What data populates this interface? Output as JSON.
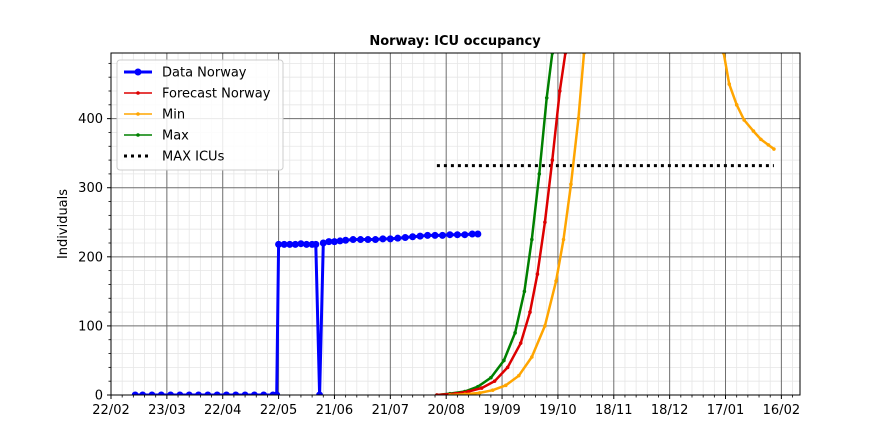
{
  "chart_data": {
    "type": "line",
    "title": "Norway: ICU occupancy",
    "xlabel": "",
    "ylabel": "Individuals",
    "x_axis": {
      "type": "date",
      "range": [
        "2020-02-22",
        "2021-02-26"
      ],
      "ticks": [
        {
          "date": "2020-02-22",
          "label": "22/02"
        },
        {
          "date": "2020-03-23",
          "label": "23/03"
        },
        {
          "date": "2020-04-22",
          "label": "22/04"
        },
        {
          "date": "2020-05-22",
          "label": "22/05"
        },
        {
          "date": "2020-06-21",
          "label": "21/06"
        },
        {
          "date": "2020-07-21",
          "label": "21/07"
        },
        {
          "date": "2020-08-20",
          "label": "20/08"
        },
        {
          "date": "2020-09-19",
          "label": "19/09"
        },
        {
          "date": "2020-10-19",
          "label": "19/10"
        },
        {
          "date": "2020-11-18",
          "label": "18/11"
        },
        {
          "date": "2020-12-18",
          "label": "18/12"
        },
        {
          "date": "2021-01-17",
          "label": "17/01"
        },
        {
          "date": "2021-02-16",
          "label": "16/02"
        }
      ]
    },
    "y_axis": {
      "range": [
        0,
        495
      ],
      "ticks": [
        0,
        100,
        200,
        300,
        400
      ]
    },
    "grid": true,
    "minor_grid": true,
    "legend_position": "top-left",
    "series": [
      {
        "name": "Data Norway",
        "color": "#0000ff",
        "style": "line-dot-thick",
        "points": [
          [
            "2020-03-06",
            0
          ],
          [
            "2020-03-10",
            0
          ],
          [
            "2020-03-15",
            0
          ],
          [
            "2020-03-20",
            0
          ],
          [
            "2020-03-25",
            0
          ],
          [
            "2020-03-30",
            0
          ],
          [
            "2020-04-04",
            0
          ],
          [
            "2020-04-09",
            0
          ],
          [
            "2020-04-14",
            0
          ],
          [
            "2020-04-19",
            0
          ],
          [
            "2020-04-24",
            0
          ],
          [
            "2020-04-29",
            0
          ],
          [
            "2020-05-04",
            0
          ],
          [
            "2020-05-09",
            0
          ],
          [
            "2020-05-14",
            0
          ],
          [
            "2020-05-19",
            0
          ],
          [
            "2020-05-21",
            0
          ],
          [
            "2020-05-22",
            218
          ],
          [
            "2020-05-25",
            218
          ],
          [
            "2020-05-28",
            218
          ],
          [
            "2020-05-31",
            218
          ],
          [
            "2020-06-03",
            219
          ],
          [
            "2020-06-06",
            218
          ],
          [
            "2020-06-09",
            218
          ],
          [
            "2020-06-11",
            218
          ],
          [
            "2020-06-13",
            0
          ],
          [
            "2020-06-15",
            220
          ],
          [
            "2020-06-18",
            222
          ],
          [
            "2020-06-21",
            222
          ],
          [
            "2020-06-24",
            223
          ],
          [
            "2020-06-27",
            224
          ],
          [
            "2020-07-01",
            225
          ],
          [
            "2020-07-05",
            225
          ],
          [
            "2020-07-09",
            225
          ],
          [
            "2020-07-13",
            225
          ],
          [
            "2020-07-17",
            226
          ],
          [
            "2020-07-21",
            226
          ],
          [
            "2020-07-25",
            227
          ],
          [
            "2020-07-29",
            228
          ],
          [
            "2020-08-02",
            229
          ],
          [
            "2020-08-06",
            230
          ],
          [
            "2020-08-10",
            231
          ],
          [
            "2020-08-14",
            231
          ],
          [
            "2020-08-18",
            231
          ],
          [
            "2020-08-22",
            232
          ],
          [
            "2020-08-26",
            232
          ],
          [
            "2020-08-30",
            232
          ],
          [
            "2020-09-03",
            233
          ],
          [
            "2020-09-06",
            233
          ]
        ]
      },
      {
        "name": "Forecast Norway",
        "color": "#dd0000",
        "style": "line-small-dot",
        "points": [
          [
            "2020-08-15",
            0
          ],
          [
            "2020-08-25",
            2
          ],
          [
            "2020-09-01",
            5
          ],
          [
            "2020-09-08",
            10
          ],
          [
            "2020-09-15",
            20
          ],
          [
            "2020-09-22",
            40
          ],
          [
            "2020-09-29",
            75
          ],
          [
            "2020-10-04",
            120
          ],
          [
            "2020-10-08",
            175
          ],
          [
            "2020-10-12",
            250
          ],
          [
            "2020-10-16",
            340
          ],
          [
            "2020-10-20",
            440
          ],
          [
            "2020-10-23",
            495
          ]
        ]
      },
      {
        "name": "Min",
        "color": "#ffa500",
        "style": "line-small-dot",
        "points": [
          [
            "2020-08-22",
            0
          ],
          [
            "2020-08-30",
            1
          ],
          [
            "2020-09-07",
            3
          ],
          [
            "2020-09-14",
            7
          ],
          [
            "2020-09-21",
            14
          ],
          [
            "2020-09-28",
            28
          ],
          [
            "2020-10-05",
            55
          ],
          [
            "2020-10-12",
            100
          ],
          [
            "2020-10-18",
            165
          ],
          [
            "2020-10-22",
            225
          ],
          [
            "2020-10-26",
            305
          ],
          [
            "2020-10-30",
            400
          ],
          [
            "2020-11-02",
            495
          ],
          null,
          [
            "2021-01-16",
            495
          ],
          [
            "2021-01-19",
            450
          ],
          [
            "2021-01-23",
            420
          ],
          [
            "2021-01-27",
            398
          ],
          [
            "2021-02-01",
            382
          ],
          [
            "2021-02-05",
            370
          ],
          [
            "2021-02-09",
            362
          ],
          [
            "2021-02-12",
            356
          ]
        ]
      },
      {
        "name": "Max",
        "color": "#008000",
        "style": "line-small-dot",
        "points": [
          [
            "2020-08-15",
            0
          ],
          [
            "2020-08-22",
            2
          ],
          [
            "2020-08-30",
            5
          ],
          [
            "2020-09-06",
            12
          ],
          [
            "2020-09-13",
            25
          ],
          [
            "2020-09-20",
            50
          ],
          [
            "2020-09-26",
            90
          ],
          [
            "2020-10-01",
            150
          ],
          [
            "2020-10-05",
            225
          ],
          [
            "2020-10-09",
            320
          ],
          [
            "2020-10-13",
            430
          ],
          [
            "2020-10-16",
            495
          ]
        ]
      },
      {
        "name": "MAX ICUs",
        "color": "#000000",
        "style": "dotted",
        "points": [
          [
            "2020-08-15",
            332
          ],
          [
            "2021-02-12",
            332
          ]
        ]
      }
    ]
  }
}
